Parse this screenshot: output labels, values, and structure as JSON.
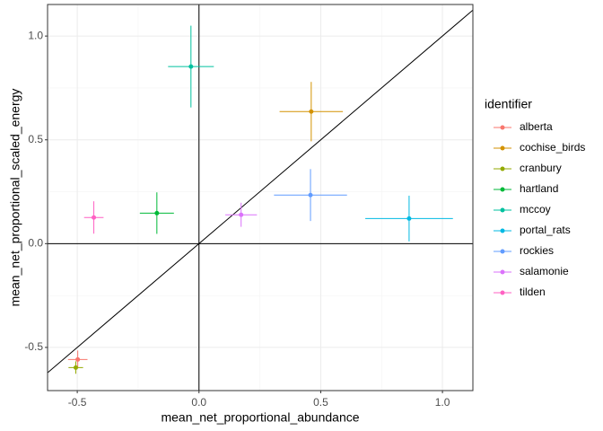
{
  "chart_data": {
    "type": "scatter",
    "x_label": "mean_net_proportional_abundance",
    "y_label": "mean_net_proportional_scaled_energy",
    "legend_title": "identifier",
    "legend_position": "right",
    "grid": true,
    "xlim": [
      -0.622,
      1.125
    ],
    "ylim": [
      -0.708,
      1.152
    ],
    "xticks": [
      -0.5,
      {
        "value": 0,
        "label": "0.0"
      },
      0.5,
      {
        "value": 1,
        "label": "1.0"
      }
    ],
    "yticks": [
      -0.5,
      {
        "value": 0,
        "label": "0.0"
      },
      0.5,
      {
        "value": 1,
        "label": "1.0"
      }
    ],
    "hline": 0,
    "vline": 0,
    "abline": {
      "intercept": 0,
      "slope": 1
    },
    "series": [
      {
        "name": "alberta",
        "color": "#F8766D",
        "x": [
          -0.498
        ],
        "values": [
          -0.558
        ],
        "xerr": [
          0.04
        ],
        "yerr": [
          0.043
        ]
      },
      {
        "name": "cochise_birds",
        "color": "#D39200",
        "x": [
          0.461
        ],
        "values": [
          0.636
        ],
        "xerr": [
          0.13
        ],
        "yerr": [
          0.143
        ]
      },
      {
        "name": "cranbury",
        "color": "#93AA00",
        "x": [
          -0.506
        ],
        "values": [
          -0.597
        ],
        "xerr": [
          0.03
        ],
        "yerr": [
          0.03
        ]
      },
      {
        "name": "hartland",
        "color": "#00BA38",
        "x": [
          -0.173
        ],
        "values": [
          0.147
        ],
        "xerr": [
          0.07
        ],
        "yerr": [
          0.1
        ]
      },
      {
        "name": "mccoy",
        "color": "#00C19F",
        "x": [
          -0.033
        ],
        "values": [
          0.853
        ],
        "xerr": [
          0.094
        ],
        "yerr": [
          0.197
        ]
      },
      {
        "name": "portal_rats",
        "color": "#00B9E3",
        "x": [
          0.863
        ],
        "values": [
          0.121
        ],
        "xerr": [
          0.18
        ],
        "yerr": [
          0.11
        ]
      },
      {
        "name": "rockies",
        "color": "#619CFF",
        "x": [
          0.458
        ],
        "values": [
          0.234
        ],
        "xerr": [
          0.15
        ],
        "yerr": [
          0.125
        ]
      },
      {
        "name": "salamonie",
        "color": "#DB72FB",
        "x": [
          0.173
        ],
        "values": [
          0.139
        ],
        "xerr": [
          0.065
        ],
        "yerr": [
          0.058
        ]
      },
      {
        "name": "tilden",
        "color": "#FF61C3",
        "x": [
          -0.432
        ],
        "values": [
          0.126
        ],
        "xerr": [
          0.04
        ],
        "yerr": [
          0.078
        ]
      }
    ]
  }
}
